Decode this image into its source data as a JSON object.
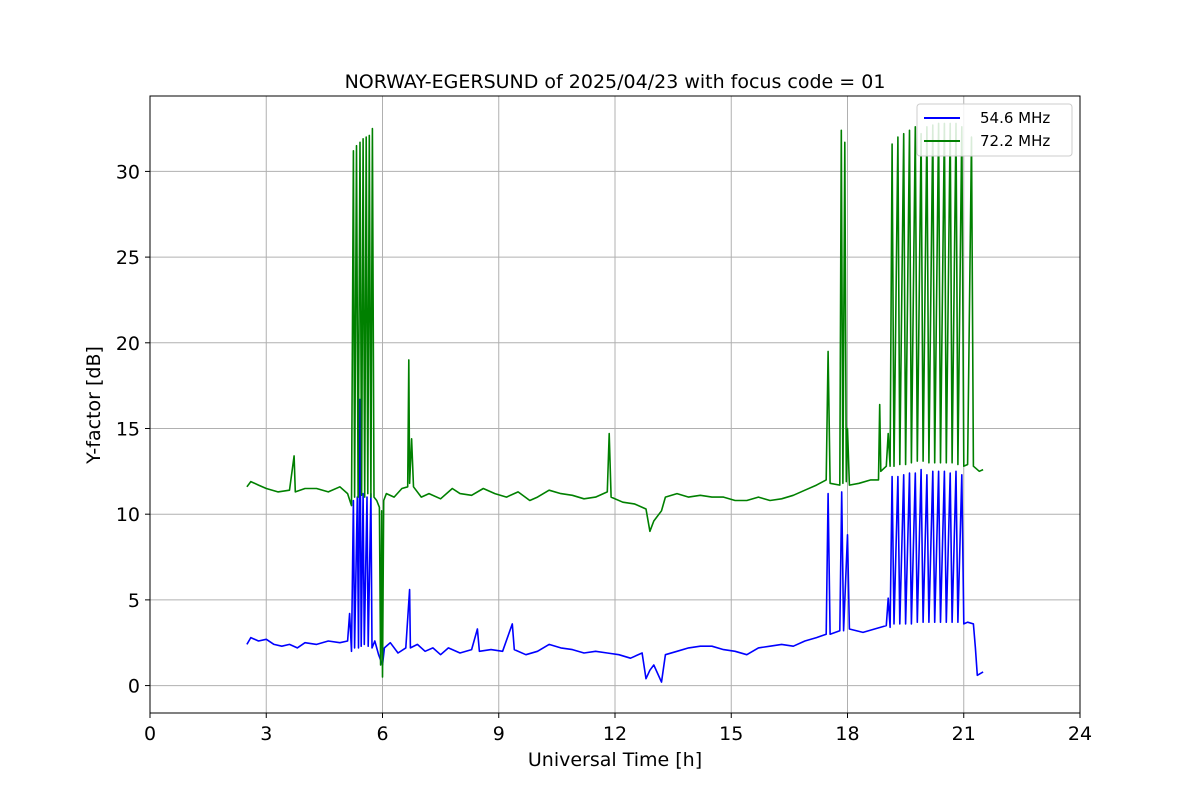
{
  "chart_data": {
    "type": "line",
    "title": "NORWAY-EGERSUND of 2025/04/23 with focus code = 01",
    "xlabel": "Universal Time [h]",
    "ylabel": "Y-factor [dB]",
    "xlim": [
      0,
      24
    ],
    "ylim": [
      -1.6,
      34.4
    ],
    "xticks": [
      0,
      3,
      6,
      9,
      12,
      15,
      18,
      21,
      24
    ],
    "xtick_labels": [
      "0",
      "3",
      "6",
      "9",
      "12",
      "15",
      "18",
      "21",
      "24"
    ],
    "yticks": [
      0,
      5,
      10,
      15,
      20,
      25,
      30
    ],
    "ytick_labels": [
      "0",
      "5",
      "10",
      "15",
      "20",
      "25",
      "30"
    ],
    "grid": true,
    "legend_position": "top-right",
    "series": [
      {
        "name": "54.6 MHz",
        "color": "#0000ff",
        "points": [
          [
            2.5,
            2.4
          ],
          [
            2.6,
            2.8
          ],
          [
            2.8,
            2.6
          ],
          [
            3.0,
            2.7
          ],
          [
            3.2,
            2.4
          ],
          [
            3.4,
            2.3
          ],
          [
            3.6,
            2.4
          ],
          [
            3.8,
            2.2
          ],
          [
            4.0,
            2.5
          ],
          [
            4.3,
            2.4
          ],
          [
            4.6,
            2.6
          ],
          [
            4.9,
            2.5
          ],
          [
            5.1,
            2.6
          ],
          [
            5.15,
            4.2
          ],
          [
            5.2,
            2.0
          ],
          [
            5.25,
            10.8
          ],
          [
            5.28,
            2.2
          ],
          [
            5.35,
            11.0
          ],
          [
            5.38,
            2.2
          ],
          [
            5.42,
            16.7
          ],
          [
            5.45,
            2.3
          ],
          [
            5.5,
            11.2
          ],
          [
            5.53,
            2.4
          ],
          [
            5.6,
            11.0
          ],
          [
            5.63,
            2.3
          ],
          [
            5.7,
            11.2
          ],
          [
            5.73,
            2.2
          ],
          [
            5.8,
            2.6
          ],
          [
            5.9,
            1.8
          ],
          [
            6.0,
            1.2
          ],
          [
            6.05,
            2.2
          ],
          [
            6.2,
            2.5
          ],
          [
            6.4,
            1.9
          ],
          [
            6.6,
            2.2
          ],
          [
            6.7,
            5.6
          ],
          [
            6.72,
            2.2
          ],
          [
            6.9,
            2.4
          ],
          [
            7.1,
            2.0
          ],
          [
            7.3,
            2.2
          ],
          [
            7.5,
            1.8
          ],
          [
            7.7,
            2.2
          ],
          [
            8.0,
            1.9
          ],
          [
            8.3,
            2.1
          ],
          [
            8.45,
            3.3
          ],
          [
            8.5,
            2.0
          ],
          [
            8.8,
            2.1
          ],
          [
            9.1,
            2.0
          ],
          [
            9.35,
            3.6
          ],
          [
            9.4,
            2.1
          ],
          [
            9.7,
            1.8
          ],
          [
            10.0,
            2.0
          ],
          [
            10.3,
            2.4
          ],
          [
            10.6,
            2.2
          ],
          [
            10.9,
            2.1
          ],
          [
            11.2,
            1.9
          ],
          [
            11.5,
            2.0
          ],
          [
            11.8,
            1.9
          ],
          [
            12.1,
            1.8
          ],
          [
            12.4,
            1.6
          ],
          [
            12.7,
            1.9
          ],
          [
            12.8,
            0.4
          ],
          [
            12.9,
            0.9
          ],
          [
            13.0,
            1.2
          ],
          [
            13.2,
            0.2
          ],
          [
            13.3,
            1.8
          ],
          [
            13.6,
            2.0
          ],
          [
            13.9,
            2.2
          ],
          [
            14.2,
            2.3
          ],
          [
            14.5,
            2.3
          ],
          [
            14.8,
            2.1
          ],
          [
            15.1,
            2.0
          ],
          [
            15.4,
            1.8
          ],
          [
            15.7,
            2.2
          ],
          [
            16.0,
            2.3
          ],
          [
            16.3,
            2.4
          ],
          [
            16.6,
            2.3
          ],
          [
            16.9,
            2.6
          ],
          [
            17.2,
            2.8
          ],
          [
            17.45,
            3.0
          ],
          [
            17.5,
            11.2
          ],
          [
            17.55,
            3.0
          ],
          [
            17.8,
            3.2
          ],
          [
            17.85,
            11.3
          ],
          [
            17.9,
            3.2
          ],
          [
            18.0,
            8.8
          ],
          [
            18.05,
            3.3
          ],
          [
            18.4,
            3.1
          ],
          [
            18.7,
            3.3
          ],
          [
            19.0,
            3.5
          ],
          [
            19.05,
            5.1
          ],
          [
            19.1,
            3.4
          ],
          [
            19.15,
            12.2
          ],
          [
            19.2,
            3.6
          ],
          [
            19.3,
            12.2
          ],
          [
            19.35,
            3.6
          ],
          [
            19.45,
            12.3
          ],
          [
            19.5,
            3.6
          ],
          [
            19.6,
            12.4
          ],
          [
            19.65,
            3.6
          ],
          [
            19.75,
            12.4
          ],
          [
            19.8,
            3.7
          ],
          [
            19.9,
            12.6
          ],
          [
            19.95,
            3.7
          ],
          [
            20.05,
            12.3
          ],
          [
            20.1,
            3.7
          ],
          [
            20.2,
            12.5
          ],
          [
            20.25,
            3.7
          ],
          [
            20.35,
            12.5
          ],
          [
            20.4,
            3.7
          ],
          [
            20.5,
            12.5
          ],
          [
            20.55,
            3.7
          ],
          [
            20.65,
            12.4
          ],
          [
            20.7,
            3.7
          ],
          [
            20.8,
            12.5
          ],
          [
            20.85,
            3.7
          ],
          [
            20.95,
            12.3
          ],
          [
            21.0,
            3.6
          ],
          [
            21.1,
            3.7
          ],
          [
            21.25,
            3.6
          ],
          [
            21.3,
            2.2
          ],
          [
            21.35,
            0.6
          ],
          [
            21.5,
            0.8
          ]
        ]
      },
      {
        "name": "72.2 MHz",
        "color": "#008000",
        "points": [
          [
            2.5,
            11.6
          ],
          [
            2.6,
            11.9
          ],
          [
            2.8,
            11.7
          ],
          [
            3.0,
            11.5
          ],
          [
            3.3,
            11.3
          ],
          [
            3.6,
            11.4
          ],
          [
            3.72,
            13.4
          ],
          [
            3.75,
            11.3
          ],
          [
            4.0,
            11.5
          ],
          [
            4.3,
            11.5
          ],
          [
            4.6,
            11.3
          ],
          [
            4.9,
            11.6
          ],
          [
            5.1,
            11.2
          ],
          [
            5.2,
            10.5
          ],
          [
            5.25,
            31.2
          ],
          [
            5.28,
            11.0
          ],
          [
            5.33,
            31.5
          ],
          [
            5.37,
            11.0
          ],
          [
            5.42,
            31.7
          ],
          [
            5.46,
            11.1
          ],
          [
            5.5,
            31.9
          ],
          [
            5.54,
            11.0
          ],
          [
            5.58,
            32.0
          ],
          [
            5.62,
            11.2
          ],
          [
            5.66,
            32.1
          ],
          [
            5.7,
            11.0
          ],
          [
            5.74,
            32.5
          ],
          [
            5.78,
            11.0
          ],
          [
            5.85,
            10.8
          ],
          [
            5.92,
            10.4
          ],
          [
            5.95,
            1.2
          ],
          [
            5.98,
            10.2
          ],
          [
            6.0,
            0.5
          ],
          [
            6.03,
            10.8
          ],
          [
            6.1,
            11.2
          ],
          [
            6.3,
            11.0
          ],
          [
            6.5,
            11.5
          ],
          [
            6.65,
            11.6
          ],
          [
            6.68,
            19.0
          ],
          [
            6.7,
            11.8
          ],
          [
            6.75,
            14.4
          ],
          [
            6.8,
            11.6
          ],
          [
            7.0,
            11.0
          ],
          [
            7.2,
            11.2
          ],
          [
            7.5,
            10.9
          ],
          [
            7.8,
            11.5
          ],
          [
            8.0,
            11.2
          ],
          [
            8.3,
            11.1
          ],
          [
            8.6,
            11.5
          ],
          [
            8.9,
            11.2
          ],
          [
            9.2,
            11.0
          ],
          [
            9.5,
            11.3
          ],
          [
            9.8,
            10.8
          ],
          [
            10.0,
            11.0
          ],
          [
            10.3,
            11.4
          ],
          [
            10.6,
            11.2
          ],
          [
            10.9,
            11.1
          ],
          [
            11.2,
            10.9
          ],
          [
            11.5,
            11.0
          ],
          [
            11.8,
            11.3
          ],
          [
            11.85,
            14.7
          ],
          [
            11.9,
            11.0
          ],
          [
            12.2,
            10.7
          ],
          [
            12.5,
            10.6
          ],
          [
            12.8,
            10.3
          ],
          [
            12.9,
            9.0
          ],
          [
            13.0,
            9.6
          ],
          [
            13.2,
            10.2
          ],
          [
            13.3,
            11.0
          ],
          [
            13.6,
            11.2
          ],
          [
            13.9,
            11.0
          ],
          [
            14.2,
            11.1
          ],
          [
            14.5,
            11.0
          ],
          [
            14.8,
            11.0
          ],
          [
            15.1,
            10.8
          ],
          [
            15.4,
            10.8
          ],
          [
            15.7,
            11.0
          ],
          [
            16.0,
            10.8
          ],
          [
            16.3,
            10.9
          ],
          [
            16.6,
            11.1
          ],
          [
            16.9,
            11.4
          ],
          [
            17.2,
            11.7
          ],
          [
            17.45,
            12.0
          ],
          [
            17.5,
            19.5
          ],
          [
            17.55,
            11.8
          ],
          [
            17.8,
            11.7
          ],
          [
            17.84,
            32.4
          ],
          [
            17.88,
            11.8
          ],
          [
            17.93,
            31.7
          ],
          [
            17.97,
            11.9
          ],
          [
            18.0,
            15.0
          ],
          [
            18.05,
            11.7
          ],
          [
            18.3,
            11.8
          ],
          [
            18.6,
            12.0
          ],
          [
            18.8,
            12.0
          ],
          [
            18.83,
            16.4
          ],
          [
            18.86,
            12.5
          ],
          [
            19.0,
            12.8
          ],
          [
            19.05,
            14.7
          ],
          [
            19.1,
            12.8
          ],
          [
            19.15,
            31.6
          ],
          [
            19.2,
            12.8
          ],
          [
            19.3,
            32.0
          ],
          [
            19.35,
            12.9
          ],
          [
            19.45,
            32.2
          ],
          [
            19.5,
            12.9
          ],
          [
            19.6,
            32.4
          ],
          [
            19.65,
            13.0
          ],
          [
            19.75,
            32.6
          ],
          [
            19.8,
            13.1
          ],
          [
            19.9,
            32.2
          ],
          [
            19.95,
            13.1
          ],
          [
            20.05,
            32.6
          ],
          [
            20.1,
            13.0
          ],
          [
            20.2,
            32.7
          ],
          [
            20.25,
            13.0
          ],
          [
            20.35,
            32.8
          ],
          [
            20.4,
            13.0
          ],
          [
            20.5,
            32.8
          ],
          [
            20.55,
            13.0
          ],
          [
            20.65,
            32.8
          ],
          [
            20.7,
            13.0
          ],
          [
            20.8,
            32.8
          ],
          [
            20.85,
            12.9
          ],
          [
            20.95,
            32.6
          ],
          [
            21.0,
            12.8
          ],
          [
            21.1,
            12.9
          ],
          [
            21.2,
            32.0
          ],
          [
            21.25,
            12.8
          ],
          [
            21.4,
            12.5
          ],
          [
            21.5,
            12.6
          ]
        ]
      }
    ]
  }
}
